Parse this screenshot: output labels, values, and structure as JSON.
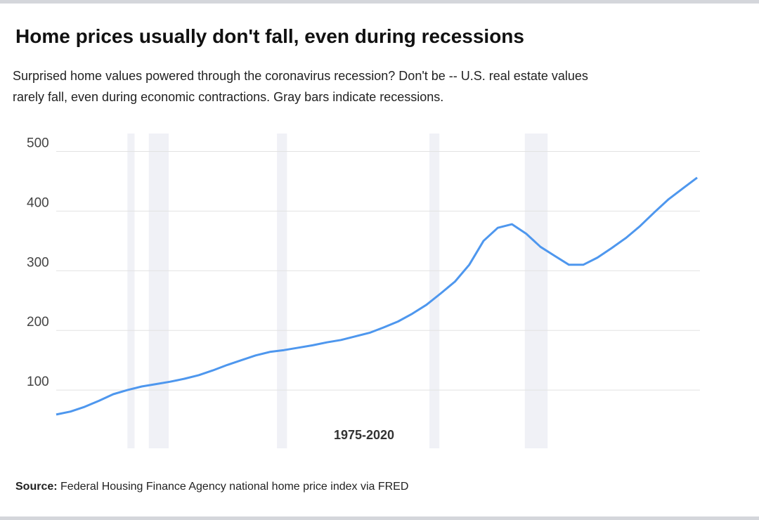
{
  "chart_data": {
    "type": "line",
    "title": "Home prices usually don't fall, even during recessions",
    "subtitle_lines": [
      "Surprised home values powered through the coronavirus recession? Don't be -- U.S. real estate values",
      "rarely fall, even during economic contractions. Gray bars indicate recessions."
    ],
    "x_label": "1975-2020",
    "source_label": "Source:",
    "source": "Federal Housing Finance Agency national home price index via FRED",
    "x": [
      1975,
      1976,
      1977,
      1978,
      1979,
      1980,
      1981,
      1982,
      1983,
      1984,
      1985,
      1986,
      1987,
      1988,
      1989,
      1990,
      1991,
      1992,
      1993,
      1994,
      1995,
      1996,
      1997,
      1998,
      1999,
      2000,
      2001,
      2002,
      2003,
      2004,
      2005,
      2006,
      2007,
      2008,
      2009,
      2010,
      2011,
      2012,
      2013,
      2014,
      2015,
      2016,
      2017,
      2018,
      2019,
      2020
    ],
    "series": [
      {
        "color": "#4e97ee",
        "values": [
          59,
          64,
          72,
          82,
          93,
          100,
          106,
          110,
          114,
          119,
          125,
          133,
          142,
          150,
          158,
          164,
          167,
          171,
          175,
          180,
          184,
          190,
          196,
          205,
          215,
          228,
          243,
          262,
          282,
          310,
          350,
          372,
          378,
          362,
          340,
          325,
          310,
          310,
          322,
          338,
          355,
          375,
          398,
          420,
          438,
          456
        ]
      }
    ],
    "recessions": [
      [
        1980.0,
        1980.5
      ],
      [
        1981.5,
        1982.9
      ],
      [
        1990.5,
        1991.2
      ],
      [
        2001.2,
        2001.9
      ],
      [
        2007.9,
        2009.5
      ]
    ],
    "recession_color": "#f0f1f6",
    "xlim": [
      1975,
      2020
    ],
    "ylim": [
      0,
      530
    ],
    "yticks": [
      100,
      200,
      300,
      400,
      500
    ],
    "grid": true
  }
}
